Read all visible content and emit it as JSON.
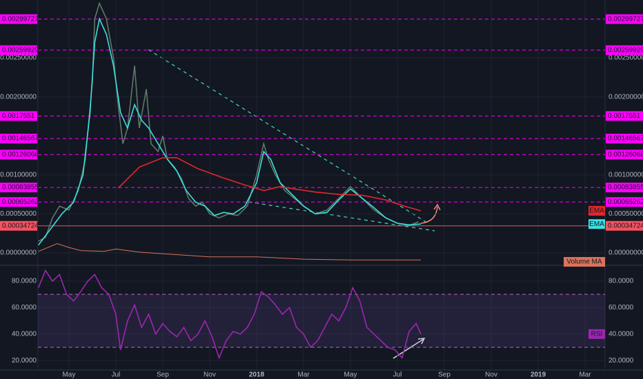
{
  "chart_data": [
    {
      "type": "line",
      "xlim": [
        2.68,
        26.85
      ],
      "xticks": [
        {
          "value": 4,
          "label": "May"
        },
        {
          "value": 6,
          "label": "Jul"
        },
        {
          "value": 8,
          "label": "Sep"
        },
        {
          "value": 10,
          "label": "Nov"
        },
        {
          "value": 12,
          "label": "2018"
        },
        {
          "value": 14,
          "label": "Mar"
        },
        {
          "value": 16,
          "label": "May"
        },
        {
          "value": 18,
          "label": "Jul"
        },
        {
          "value": 20,
          "label": "Sep"
        },
        {
          "value": 22,
          "label": "Nov"
        },
        {
          "value": 24,
          "label": "2019"
        },
        {
          "value": 26,
          "label": "Mar"
        }
      ],
      "ylim": [
        -0.000141,
        0.003242
      ],
      "yticks": [
        {
          "value": 0,
          "label": "0.00000000"
        },
        {
          "value": 0.0005,
          "label": "0.00050000"
        },
        {
          "value": 0.001,
          "label": "0.00100000"
        },
        {
          "value": 0.002,
          "label": "0.00200000"
        },
        {
          "value": 0.0025,
          "label": "0.00250000"
        }
      ],
      "levels": [
        0.00299727,
        0.00259929,
        0.0017551,
        0.00146567,
        0.00126068,
        0.00083855,
        0.00065262
      ],
      "level_color": "#ff00ff",
      "last_price": 0.00034724,
      "last_color": "#f7525f",
      "grid": true,
      "series": [
        {
          "color": "#5d7a66",
          "x": [
            2.7,
            3.0,
            3.3,
            3.6,
            4.0,
            4.4,
            4.7,
            5.0,
            5.1,
            5.3,
            5.6,
            5.9,
            6.1,
            6.3,
            6.5,
            6.8,
            7.0,
            7.3,
            7.5,
            7.8,
            8.0,
            8.2,
            8.5,
            8.8,
            9.1,
            9.4,
            9.7,
            10.0,
            10.4,
            10.8,
            11.2,
            11.6,
            12.0,
            12.3,
            12.5,
            12.8,
            13.2,
            13.6,
            14.0,
            14.5,
            15.0,
            15.5,
            16.0,
            16.5,
            17.0,
            17.5,
            18.0,
            18.5,
            18.9
          ],
          "values": [
            0.00015,
            0.0002,
            0.00045,
            0.0006,
            0.00055,
            0.0008,
            0.0012,
            0.0022,
            0.003,
            0.0032,
            0.003,
            0.0025,
            0.0019,
            0.0014,
            0.0016,
            0.0024,
            0.0016,
            0.0021,
            0.0014,
            0.0013,
            0.0015,
            0.0012,
            0.0011,
            0.00095,
            0.0007,
            0.0006,
            0.00065,
            0.0005,
            0.00045,
            0.0005,
            0.00048,
            0.0006,
            0.001,
            0.0014,
            0.0012,
            0.001,
            0.0008,
            0.0007,
            0.0006,
            0.0005,
            0.00055,
            0.0007,
            0.00085,
            0.0007,
            0.00055,
            0.00045,
            0.00038,
            0.00035,
            0.0004
          ]
        },
        {
          "name": "EMA",
          "color": "#3de0e0",
          "x": [
            2.7,
            3.2,
            3.7,
            4.2,
            4.6,
            4.9,
            5.1,
            5.3,
            5.6,
            5.9,
            6.2,
            6.5,
            6.8,
            7.1,
            7.4,
            7.8,
            8.2,
            8.6,
            9.0,
            9.4,
            9.8,
            10.2,
            10.6,
            11.0,
            11.5,
            12.0,
            12.3,
            12.6,
            13.0,
            13.5,
            14.0,
            14.5,
            15.0,
            15.5,
            16.0,
            16.5,
            17.0,
            17.5,
            18.0,
            18.5,
            19.0
          ],
          "values": [
            0.0001,
            0.0003,
            0.0005,
            0.00065,
            0.001,
            0.0018,
            0.0027,
            0.003,
            0.0028,
            0.0024,
            0.0018,
            0.0016,
            0.0019,
            0.0017,
            0.0016,
            0.0014,
            0.0012,
            0.00105,
            0.0008,
            0.00065,
            0.0006,
            0.00048,
            0.00052,
            0.0005,
            0.0006,
            0.0009,
            0.0013,
            0.0012,
            0.0009,
            0.00075,
            0.0006,
            0.0005,
            0.00052,
            0.00068,
            0.00082,
            0.0007,
            0.00058,
            0.00045,
            0.00038,
            0.00036,
            0.00037
          ]
        },
        {
          "name": "EMA",
          "color": "#e8262b",
          "x": [
            6.1,
            7.0,
            8.0,
            8.6,
            9.5,
            10.5,
            11.5,
            12.3,
            13.0,
            13.6,
            14.5,
            15.5,
            16.5,
            17.5,
            18.3,
            19.0
          ],
          "values": [
            0.00083,
            0.0011,
            0.00122,
            0.00122,
            0.00108,
            0.00097,
            0.00087,
            0.0008,
            0.00085,
            0.00082,
            0.00078,
            0.00075,
            0.00074,
            0.00068,
            0.0006,
            0.00054
          ]
        },
        {
          "name": "Volume MA",
          "color": "#d9735a",
          "x": [
            2.7,
            3.5,
            4.0,
            4.5,
            5.5,
            6.0,
            7.0,
            8.0,
            10.0,
            12.0,
            14.0,
            16.0,
            19.0
          ],
          "values": [
            2e-05,
            0.00012,
            7e-05,
            3e-05,
            2e-05,
            5e-05,
            1e-05,
            -1e-05,
            -5e-05,
            -5e-05,
            -8e-05,
            -9e-05,
            -9e-05
          ]
        }
      ]
    },
    {
      "type": "line",
      "xlim": [
        2.68,
        26.85
      ],
      "ylim": [
        12.8,
        90.4
      ],
      "yticks": [
        {
          "value": 20,
          "label": "20.0000"
        },
        {
          "value": 40,
          "label": "40.0000"
        },
        {
          "value": 60,
          "label": "60.0000"
        },
        {
          "value": 80,
          "label": "80.0000"
        }
      ],
      "bands": [
        30,
        70
      ],
      "series": [
        {
          "name": "RSI",
          "color": "#9c27b0",
          "x": [
            2.7,
            3.0,
            3.3,
            3.6,
            3.9,
            4.2,
            4.5,
            4.8,
            5.1,
            5.4,
            5.7,
            6.0,
            6.2,
            6.5,
            6.8,
            7.1,
            7.4,
            7.7,
            8.0,
            8.3,
            8.6,
            8.9,
            9.2,
            9.5,
            9.8,
            10.1,
            10.4,
            10.7,
            11.0,
            11.3,
            11.6,
            11.9,
            12.2,
            12.5,
            12.8,
            13.1,
            13.4,
            13.7,
            14.0,
            14.3,
            14.6,
            14.9,
            15.2,
            15.5,
            15.8,
            16.1,
            16.4,
            16.7,
            17.0,
            17.3,
            17.6,
            17.9,
            18.2,
            18.5,
            18.8,
            19.0
          ],
          "values": [
            75,
            88,
            80,
            85,
            70,
            65,
            72,
            80,
            85,
            75,
            70,
            55,
            28,
            50,
            62,
            45,
            55,
            40,
            48,
            42,
            38,
            45,
            35,
            40,
            50,
            38,
            22,
            35,
            42,
            40,
            45,
            55,
            72,
            68,
            62,
            55,
            60,
            45,
            40,
            30,
            35,
            45,
            55,
            50,
            60,
            75,
            65,
            45,
            40,
            35,
            30,
            28,
            22,
            42,
            48,
            40
          ]
        }
      ]
    }
  ]
}
